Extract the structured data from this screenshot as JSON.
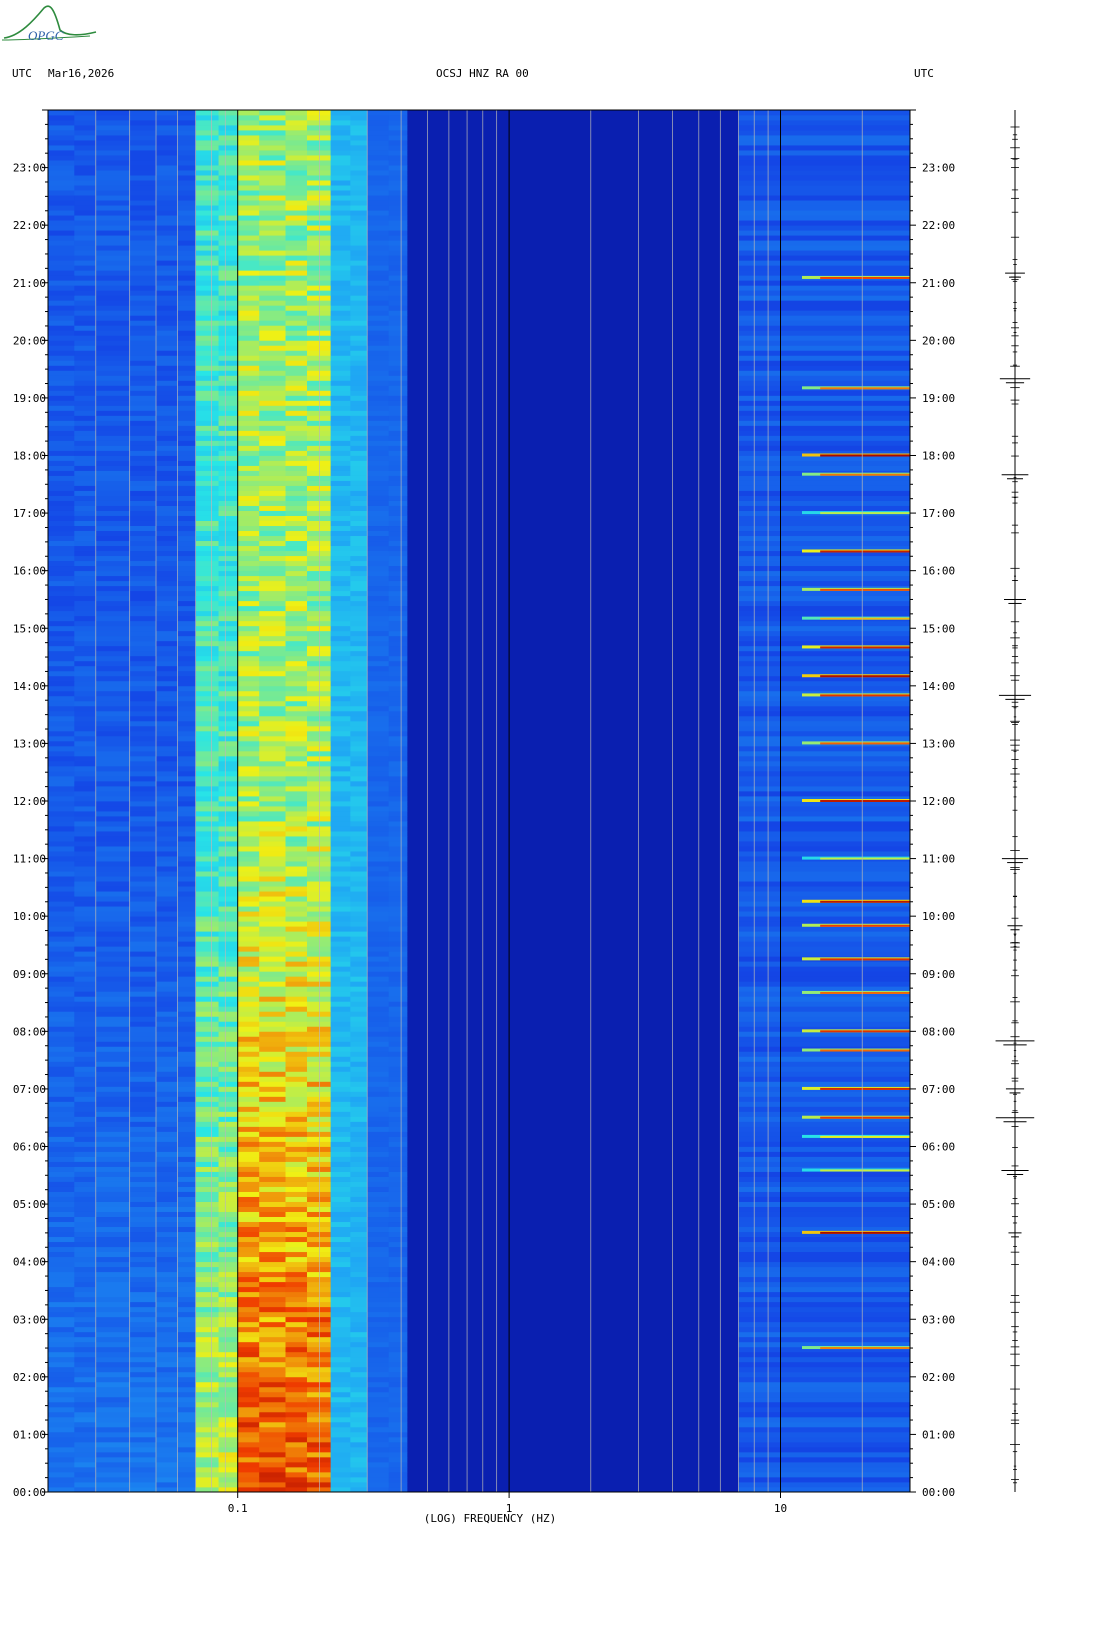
{
  "header": {
    "left_tz": "UTC",
    "date": "Mar16,2026",
    "station": "OCSJ HNZ RA 00",
    "right_tz": "UTC"
  },
  "logo": {
    "text": "OPGC"
  },
  "colors": {
    "low": "#0a1ea8",
    "mid": "#1ec8f0",
    "high": "#f0f000",
    "peak": "#a00000"
  },
  "chart_data": {
    "type": "heatmap",
    "title": "OCSJ HNZ RA 00",
    "xlabel": "(LOG) FREQUENCY (HZ)",
    "ylabel": "",
    "x_scale": "log",
    "xlim": [
      0.02,
      30
    ],
    "x_ticks": [
      {
        "value": 0.1,
        "label": "0.1"
      },
      {
        "value": 1,
        "label": "1"
      },
      {
        "value": 10,
        "label": "10"
      }
    ],
    "y_time_range": [
      "00:00",
      "24:00"
    ],
    "y_tick_labels": [
      "00:00",
      "01:00",
      "02:00",
      "03:00",
      "04:00",
      "05:00",
      "06:00",
      "07:00",
      "08:00",
      "09:00",
      "10:00",
      "11:00",
      "12:00",
      "13:00",
      "14:00",
      "15:00",
      "16:00",
      "17:00",
      "18:00",
      "19:00",
      "20:00",
      "21:00",
      "22:00",
      "23:00"
    ],
    "colormap": [
      "dark blue",
      "blue",
      "cyan",
      "yellow",
      "red",
      "dark red"
    ],
    "dominant_band_hz": [
      0.07,
      0.3
    ],
    "high_freq_band_hz": [
      7,
      30
    ],
    "high_freq_events_utc": [
      "02:30",
      "04:30",
      "05:35",
      "06:10",
      "06:30",
      "07:00",
      "07:40",
      "08:00",
      "08:40",
      "09:15",
      "09:50",
      "10:15",
      "11:00",
      "12:00",
      "13:00",
      "13:50",
      "14:10",
      "14:40",
      "15:10",
      "15:40",
      "16:20",
      "17:00",
      "17:40",
      "18:00",
      "19:10",
      "21:05"
    ],
    "trace_events_utc": [
      "04:30",
      "05:35",
      "06:30",
      "07:00",
      "07:50",
      "09:50",
      "11:00",
      "13:50",
      "15:30",
      "17:40",
      "19:20",
      "21:10"
    ]
  }
}
